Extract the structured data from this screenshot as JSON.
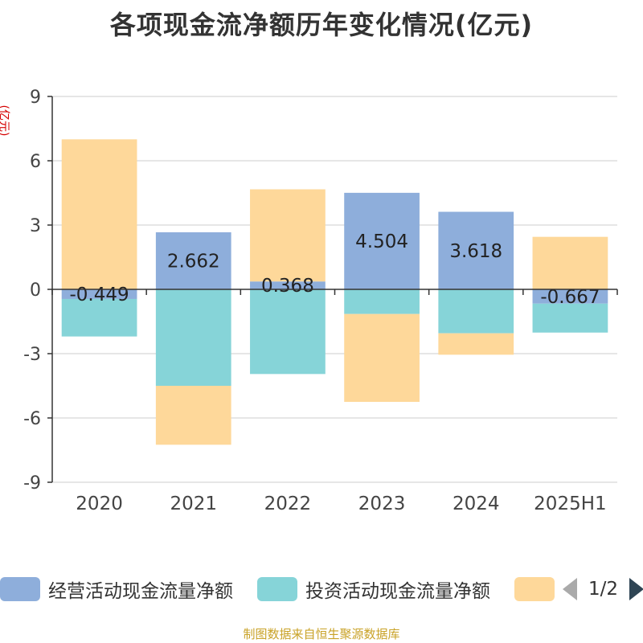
{
  "title": "各项现金流净额历年变化情况(亿元)",
  "unit_label": "(亿元)",
  "source": "制图数据来自恒生聚源数据库",
  "legend": {
    "items": [
      {
        "label": "经营活动现金流量净额",
        "color": "#8eaedb"
      },
      {
        "label": "投资活动现金流量净额",
        "color": "#86d4d8"
      },
      {
        "label": "",
        "color": "#fed89a"
      }
    ],
    "page": "1/2"
  },
  "chart_data": {
    "type": "bar",
    "stacked": true,
    "categories": [
      "2020",
      "2021",
      "2022",
      "2023",
      "2024",
      "2025H1"
    ],
    "ylim": [
      -9,
      9
    ],
    "yticks": [
      9,
      6,
      3,
      0,
      -3,
      -6,
      -9
    ],
    "grid": true,
    "legend_position": "bottom",
    "series": [
      {
        "name": "经营活动现金流量净额",
        "color": "#8eaedb",
        "values": [
          -0.449,
          2.662,
          0.368,
          4.504,
          3.618,
          -0.667
        ],
        "labels": [
          "-0.449",
          "2.662",
          "0.368",
          "4.504",
          "3.618",
          "-0.667"
        ]
      },
      {
        "name": "投资活动现金流量净额",
        "color": "#86d4d8",
        "values": [
          -1.75,
          -4.5,
          -3.95,
          -1.15,
          -2.05,
          -1.35
        ]
      },
      {
        "color": "#fed89a",
        "values": [
          7.0,
          -2.75,
          4.3,
          -4.1,
          -1.0,
          2.45
        ]
      }
    ]
  }
}
